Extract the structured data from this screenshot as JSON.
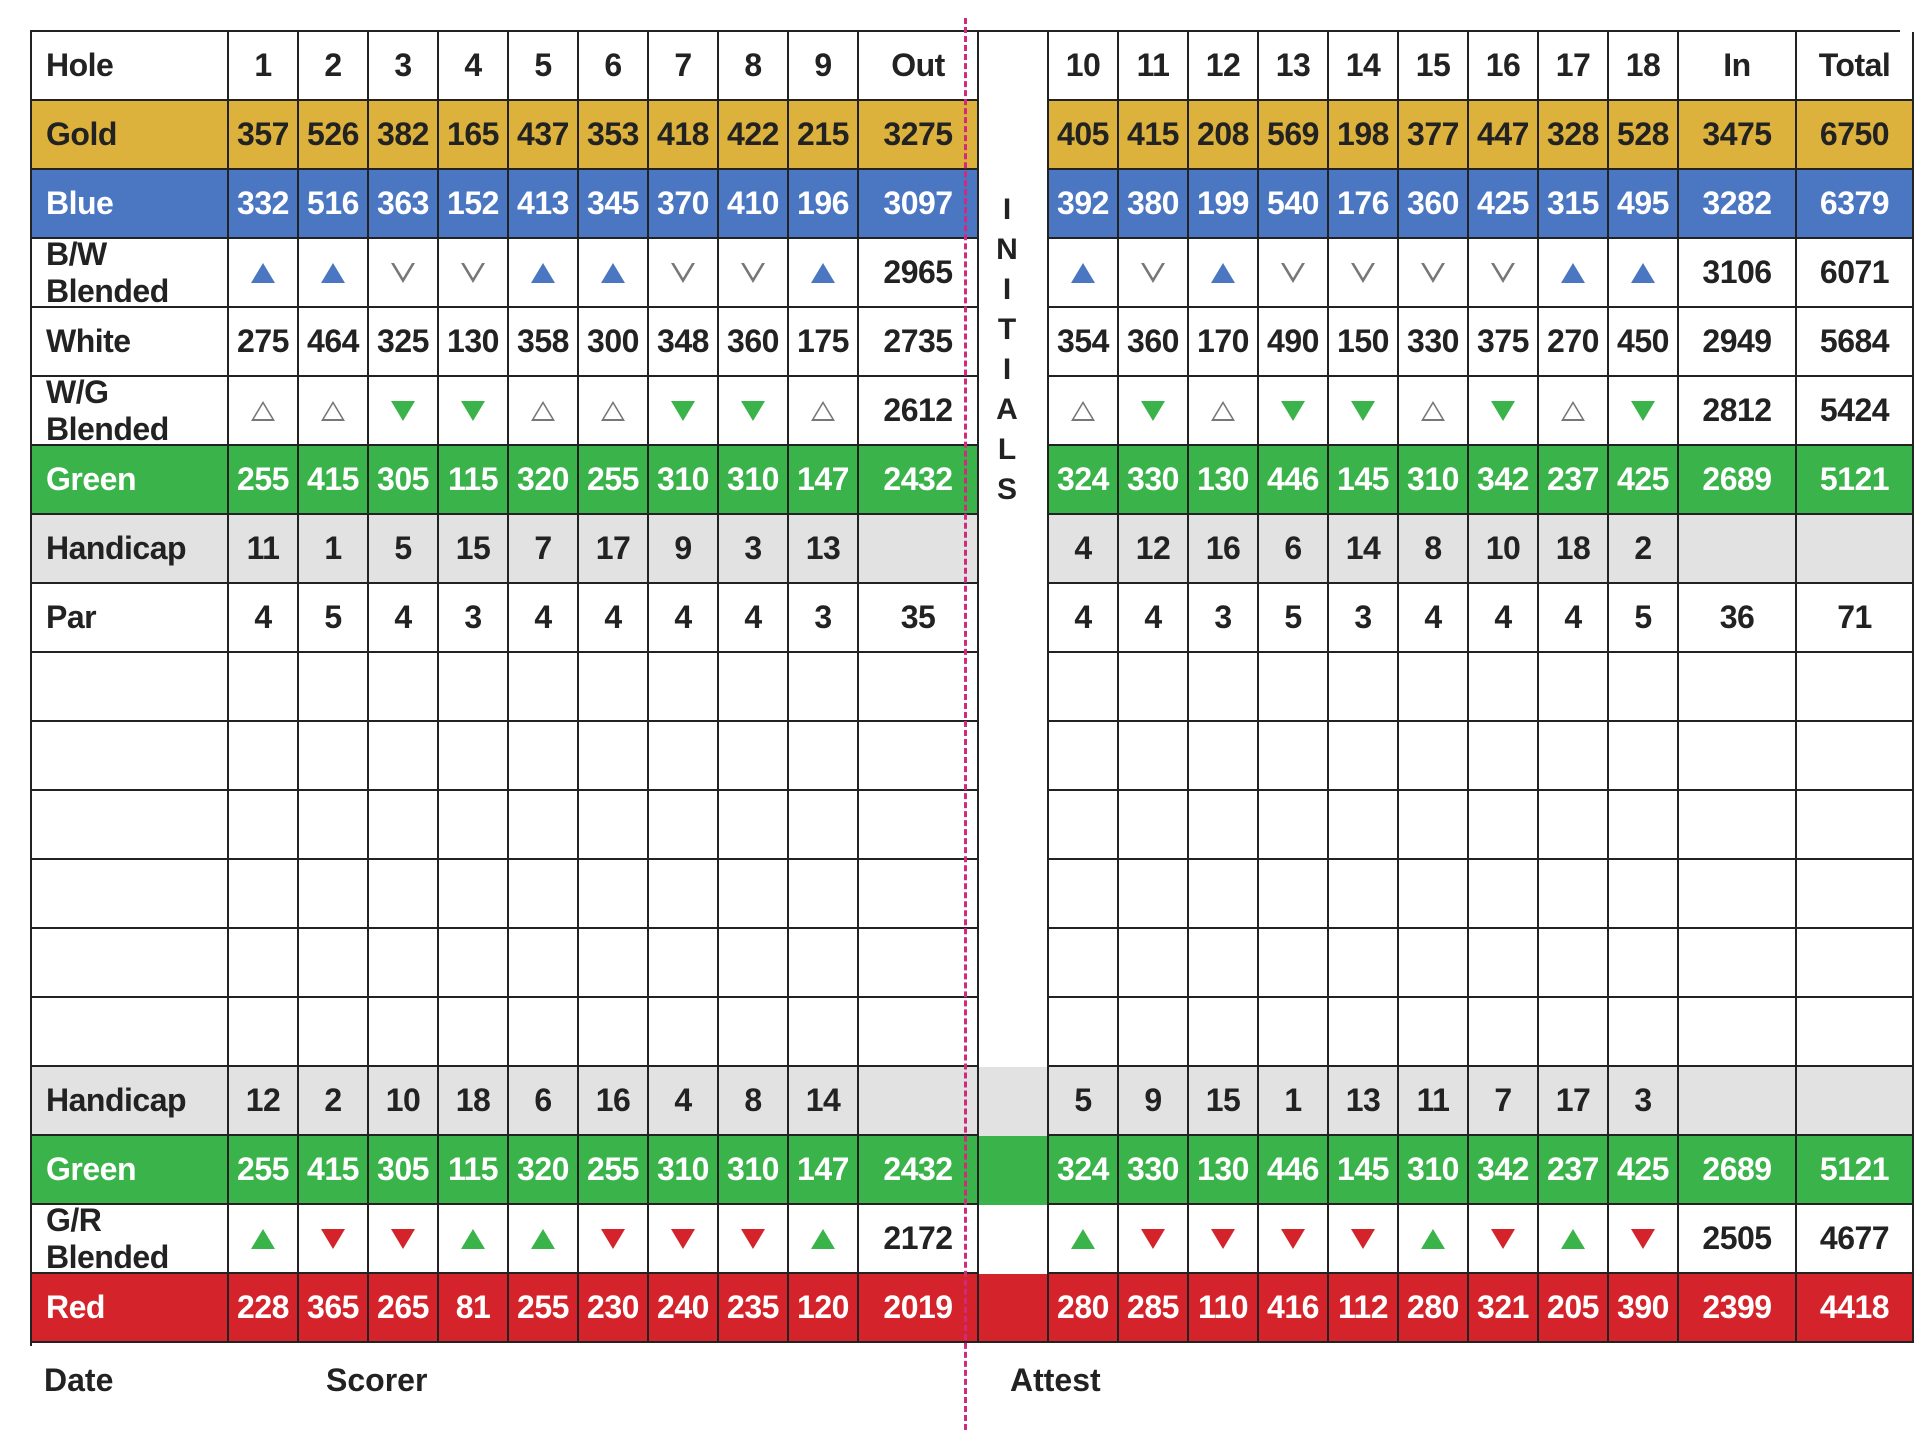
{
  "colors": {
    "gold": "#dcb23c",
    "blue": "#4a76c2",
    "green": "#3ab34a",
    "red": "#d4232b",
    "handicap": "#e2e2e2",
    "cut_line": "#d0297d"
  },
  "initials": [
    "I",
    "N",
    "I",
    "T",
    "I",
    "A",
    "L",
    "S"
  ],
  "footer": {
    "date": "Date",
    "scorer": "Scorer",
    "attest": "Attest"
  },
  "rows": [
    {
      "type": "header",
      "label": "Hole",
      "front": [
        "1",
        "2",
        "3",
        "4",
        "5",
        "6",
        "7",
        "8",
        "9"
      ],
      "out": "Out",
      "back": [
        "10",
        "11",
        "12",
        "13",
        "14",
        "15",
        "16",
        "17",
        "18"
      ],
      "in": "In",
      "total": "Total"
    },
    {
      "type": "gold",
      "label": "Gold",
      "front": [
        "357",
        "526",
        "382",
        "165",
        "437",
        "353",
        "418",
        "422",
        "215"
      ],
      "out": "3275",
      "back": [
        "405",
        "415",
        "208",
        "569",
        "198",
        "377",
        "447",
        "328",
        "528"
      ],
      "in": "3475",
      "total": "6750"
    },
    {
      "type": "blue",
      "label": "Blue",
      "front": [
        "332",
        "516",
        "363",
        "152",
        "413",
        "345",
        "370",
        "410",
        "196"
      ],
      "out": "3097",
      "back": [
        "392",
        "380",
        "199",
        "540",
        "176",
        "360",
        "425",
        "315",
        "495"
      ],
      "in": "3282",
      "total": "6379"
    },
    {
      "type": "blend",
      "label": "B/W Blended",
      "icon_color": "#4a76c2",
      "front": [
        "up",
        "up",
        "down-out",
        "down-out",
        "up",
        "up",
        "down-out",
        "down-out",
        "up"
      ],
      "out": "2965",
      "back": [
        "up",
        "down-out",
        "up",
        "down-out",
        "down-out",
        "down-out",
        "down-out",
        "up",
        "up"
      ],
      "in": "3106",
      "total": "6071"
    },
    {
      "type": "white",
      "label": "White",
      "front": [
        "275",
        "464",
        "325",
        "130",
        "358",
        "300",
        "348",
        "360",
        "175"
      ],
      "out": "2735",
      "back": [
        "354",
        "360",
        "170",
        "490",
        "150",
        "330",
        "375",
        "270",
        "450"
      ],
      "in": "2949",
      "total": "5684"
    },
    {
      "type": "blend",
      "label": "W/G Blended",
      "icon_color": "#3ab34a",
      "front": [
        "up-out",
        "up-out",
        "down",
        "down",
        "up-out",
        "up-out",
        "down",
        "down",
        "up-out"
      ],
      "out": "2612",
      "back": [
        "up-out",
        "down",
        "up-out",
        "down",
        "down",
        "up-out",
        "down",
        "up-out",
        "down"
      ],
      "in": "2812",
      "total": "5424"
    },
    {
      "type": "green",
      "label": "Green",
      "front": [
        "255",
        "415",
        "305",
        "115",
        "320",
        "255",
        "310",
        "310",
        "147"
      ],
      "out": "2432",
      "back": [
        "324",
        "330",
        "130",
        "446",
        "145",
        "310",
        "342",
        "237",
        "425"
      ],
      "in": "2689",
      "total": "5121"
    },
    {
      "type": "hcp",
      "label": "Handicap",
      "front": [
        "11",
        "1",
        "5",
        "15",
        "7",
        "17",
        "9",
        "3",
        "13"
      ],
      "out": "",
      "back": [
        "4",
        "12",
        "16",
        "6",
        "14",
        "8",
        "10",
        "18",
        "2"
      ],
      "in": "",
      "total": ""
    },
    {
      "type": "white",
      "label": "Par",
      "front": [
        "4",
        "5",
        "4",
        "3",
        "4",
        "4",
        "4",
        "4",
        "3"
      ],
      "out": "35",
      "back": [
        "4",
        "4",
        "3",
        "5",
        "3",
        "4",
        "4",
        "4",
        "5"
      ],
      "in": "36",
      "total": "71"
    },
    {
      "type": "blank",
      "label": "",
      "front": [
        "",
        "",
        "",
        "",
        "",
        "",
        "",
        "",
        ""
      ],
      "out": "",
      "back": [
        "",
        "",
        "",
        "",
        "",
        "",
        "",
        "",
        ""
      ],
      "in": "",
      "total": ""
    },
    {
      "type": "blank",
      "label": "",
      "front": [
        "",
        "",
        "",
        "",
        "",
        "",
        "",
        "",
        ""
      ],
      "out": "",
      "back": [
        "",
        "",
        "",
        "",
        "",
        "",
        "",
        "",
        ""
      ],
      "in": "",
      "total": ""
    },
    {
      "type": "blank",
      "label": "",
      "front": [
        "",
        "",
        "",
        "",
        "",
        "",
        "",
        "",
        ""
      ],
      "out": "",
      "back": [
        "",
        "",
        "",
        "",
        "",
        "",
        "",
        "",
        ""
      ],
      "in": "",
      "total": ""
    },
    {
      "type": "blank",
      "label": "",
      "front": [
        "",
        "",
        "",
        "",
        "",
        "",
        "",
        "",
        ""
      ],
      "out": "",
      "back": [
        "",
        "",
        "",
        "",
        "",
        "",
        "",
        "",
        ""
      ],
      "in": "",
      "total": ""
    },
    {
      "type": "blank",
      "label": "",
      "front": [
        "",
        "",
        "",
        "",
        "",
        "",
        "",
        "",
        ""
      ],
      "out": "",
      "back": [
        "",
        "",
        "",
        "",
        "",
        "",
        "",
        "",
        ""
      ],
      "in": "",
      "total": ""
    },
    {
      "type": "blank",
      "label": "",
      "front": [
        "",
        "",
        "",
        "",
        "",
        "",
        "",
        "",
        ""
      ],
      "out": "",
      "back": [
        "",
        "",
        "",
        "",
        "",
        "",
        "",
        "",
        ""
      ],
      "in": "",
      "total": ""
    },
    {
      "type": "hcp",
      "label": "Handicap",
      "front": [
        "12",
        "2",
        "10",
        "18",
        "6",
        "16",
        "4",
        "8",
        "14"
      ],
      "out": "",
      "back": [
        "5",
        "9",
        "15",
        "1",
        "13",
        "11",
        "7",
        "17",
        "3"
      ],
      "in": "",
      "total": ""
    },
    {
      "type": "green",
      "label": "Green",
      "front": [
        "255",
        "415",
        "305",
        "115",
        "320",
        "255",
        "310",
        "310",
        "147"
      ],
      "out": "2432",
      "back": [
        "324",
        "330",
        "130",
        "446",
        "145",
        "310",
        "342",
        "237",
        "425"
      ],
      "in": "2689",
      "total": "5121"
    },
    {
      "type": "blend2",
      "label": "G/R Blended",
      "up_color": "#3ab34a",
      "down_color": "#d4232b",
      "front": [
        "up",
        "down",
        "down",
        "up",
        "up",
        "down",
        "down",
        "down",
        "up"
      ],
      "out": "2172",
      "back": [
        "up",
        "down",
        "down",
        "down",
        "down",
        "up",
        "down",
        "up",
        "down"
      ],
      "in": "2505",
      "total": "4677"
    },
    {
      "type": "red",
      "label": "Red",
      "front": [
        "228",
        "365",
        "265",
        "81",
        "255",
        "230",
        "240",
        "235",
        "120"
      ],
      "out": "2019",
      "back": [
        "280",
        "285",
        "110",
        "416",
        "112",
        "280",
        "321",
        "205",
        "390"
      ],
      "in": "2399",
      "total": "4418"
    }
  ]
}
